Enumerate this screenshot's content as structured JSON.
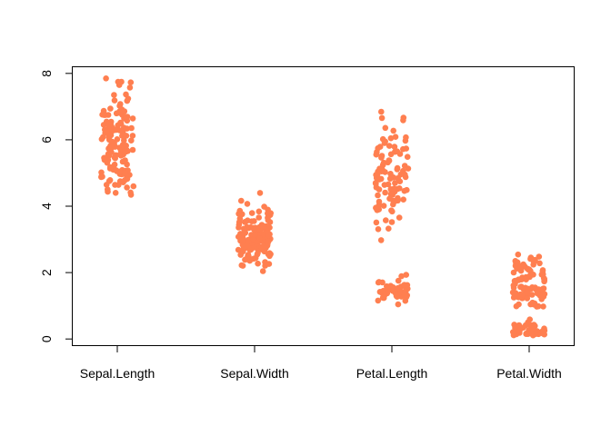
{
  "chart_data": {
    "type": "scatter",
    "subtype": "strip-chart-jittered",
    "title": "",
    "xlabel": "",
    "ylabel": "",
    "categories": [
      "Sepal.Length",
      "Sepal.Width",
      "Petal.Length",
      "Petal.Width"
    ],
    "ylim": [
      -0.2,
      8.2
    ],
    "yticks": [
      0,
      2,
      4,
      6,
      8
    ],
    "point_color": "#FF7F50",
    "legend": "none",
    "grid": false,
    "series": [
      {
        "category": "Sepal.Length",
        "values": [
          5.1,
          4.9,
          4.7,
          4.6,
          5.0,
          5.4,
          4.6,
          5.0,
          4.4,
          4.9,
          5.4,
          4.8,
          4.8,
          4.3,
          5.8,
          5.7,
          5.4,
          5.1,
          5.7,
          5.1,
          5.4,
          5.1,
          4.6,
          5.1,
          4.8,
          5.0,
          5.0,
          5.2,
          5.2,
          4.7,
          4.8,
          5.4,
          5.2,
          5.5,
          4.9,
          5.0,
          5.5,
          4.9,
          4.4,
          5.1,
          5.0,
          4.5,
          4.4,
          5.0,
          5.1,
          4.8,
          5.1,
          4.6,
          5.3,
          5.0,
          7.0,
          6.4,
          6.9,
          5.5,
          6.5,
          5.7,
          6.3,
          4.9,
          6.6,
          5.2,
          5.0,
          5.9,
          6.0,
          6.1,
          5.6,
          6.7,
          5.6,
          5.8,
          6.2,
          5.6,
          5.9,
          6.1,
          6.3,
          6.1,
          6.4,
          6.6,
          6.8,
          6.7,
          6.0,
          5.7,
          5.5,
          5.5,
          5.8,
          6.0,
          5.4,
          6.0,
          6.7,
          6.3,
          5.6,
          5.5,
          5.5,
          6.1,
          5.8,
          5.0,
          5.6,
          5.7,
          5.7,
          6.2,
          5.1,
          5.7,
          6.3,
          5.8,
          7.1,
          6.3,
          6.5,
          7.6,
          4.9,
          7.3,
          6.7,
          7.2,
          6.5,
          6.4,
          6.8,
          5.7,
          5.8,
          6.4,
          6.5,
          7.7,
          7.7,
          6.0,
          6.9,
          5.6,
          7.7,
          6.3,
          6.7,
          7.2,
          6.2,
          6.1,
          6.4,
          7.2,
          7.4,
          7.9,
          6.4,
          6.3,
          6.1,
          7.7,
          6.3,
          6.4,
          6.0,
          6.9,
          6.7,
          6.9,
          5.8,
          6.8,
          6.7,
          6.7,
          6.3,
          6.5,
          6.2,
          5.9
        ]
      },
      {
        "category": "Sepal.Width",
        "values": [
          3.5,
          3.0,
          3.2,
          3.1,
          3.6,
          3.9,
          3.4,
          3.4,
          2.9,
          3.1,
          3.7,
          3.4,
          3.0,
          3.0,
          4.0,
          4.4,
          3.9,
          3.5,
          3.8,
          3.8,
          3.4,
          3.7,
          3.6,
          3.3,
          3.4,
          3.0,
          3.4,
          3.5,
          3.4,
          3.2,
          3.1,
          3.4,
          4.1,
          4.2,
          3.1,
          3.2,
          3.5,
          3.6,
          3.0,
          3.4,
          3.5,
          2.3,
          3.2,
          3.5,
          3.8,
          3.0,
          3.8,
          3.2,
          3.7,
          3.3,
          3.2,
          3.2,
          3.1,
          2.3,
          2.8,
          2.8,
          3.3,
          2.4,
          2.9,
          2.7,
          2.0,
          3.0,
          2.2,
          2.9,
          2.9,
          3.1,
          3.0,
          2.7,
          2.2,
          2.5,
          3.2,
          2.8,
          2.5,
          2.8,
          2.9,
          3.0,
          2.8,
          3.0,
          2.9,
          2.6,
          2.4,
          2.4,
          2.7,
          2.7,
          3.0,
          3.4,
          3.1,
          2.3,
          3.0,
          2.5,
          2.6,
          3.0,
          2.6,
          2.3,
          2.7,
          3.0,
          2.9,
          2.9,
          2.5,
          2.8,
          3.3,
          2.7,
          3.0,
          2.9,
          3.0,
          3.0,
          2.5,
          2.9,
          2.5,
          3.6,
          3.2,
          2.7,
          3.0,
          2.5,
          2.8,
          3.2,
          3.0,
          3.8,
          2.6,
          2.2,
          3.2,
          2.8,
          2.8,
          2.7,
          3.3,
          3.2,
          2.8,
          3.0,
          2.8,
          3.0,
          2.8,
          3.8,
          2.8,
          2.8,
          2.6,
          3.0,
          3.4,
          3.1,
          3.0,
          3.1,
          3.1,
          3.1,
          2.7,
          3.2,
          3.3,
          3.0,
          2.5,
          3.0,
          3.4,
          3.0
        ]
      },
      {
        "category": "Petal.Length",
        "values": [
          1.4,
          1.4,
          1.3,
          1.5,
          1.4,
          1.7,
          1.4,
          1.5,
          1.4,
          1.5,
          1.5,
          1.6,
          1.4,
          1.1,
          1.2,
          1.5,
          1.3,
          1.4,
          1.7,
          1.5,
          1.7,
          1.5,
          1.0,
          1.7,
          1.9,
          1.6,
          1.6,
          1.5,
          1.4,
          1.6,
          1.6,
          1.5,
          1.5,
          1.4,
          1.5,
          1.2,
          1.3,
          1.4,
          1.3,
          1.5,
          1.3,
          1.3,
          1.3,
          1.6,
          1.9,
          1.4,
          1.6,
          1.4,
          1.5,
          1.4,
          4.7,
          4.5,
          4.9,
          4.0,
          4.6,
          4.5,
          4.7,
          3.3,
          4.6,
          3.9,
          3.5,
          4.2,
          4.0,
          4.7,
          3.6,
          4.4,
          4.5,
          4.1,
          4.5,
          3.9,
          4.8,
          4.0,
          4.9,
          4.7,
          4.3,
          4.4,
          4.8,
          5.0,
          4.5,
          3.5,
          3.8,
          3.7,
          3.9,
          5.1,
          4.5,
          4.5,
          4.7,
          4.4,
          4.1,
          4.0,
          4.4,
          4.6,
          4.0,
          3.3,
          4.2,
          4.2,
          4.2,
          4.3,
          3.0,
          4.1,
          6.0,
          5.1,
          5.9,
          5.6,
          5.8,
          6.6,
          4.5,
          6.3,
          5.8,
          6.1,
          5.1,
          5.3,
          5.5,
          5.0,
          5.1,
          5.3,
          5.5,
          6.7,
          6.9,
          5.0,
          5.7,
          4.9,
          6.7,
          4.9,
          5.7,
          6.0,
          4.8,
          4.9,
          5.6,
          5.8,
          6.1,
          6.4,
          5.6,
          5.1,
          5.6,
          6.1,
          5.6,
          5.5,
          4.8,
          5.4,
          5.6,
          5.1,
          5.1,
          5.9,
          5.7,
          5.2,
          5.0,
          5.2,
          5.4,
          5.1
        ]
      },
      {
        "category": "Petal.Width",
        "values": [
          0.2,
          0.2,
          0.2,
          0.2,
          0.2,
          0.4,
          0.3,
          0.2,
          0.2,
          0.1,
          0.2,
          0.2,
          0.1,
          0.1,
          0.2,
          0.4,
          0.4,
          0.3,
          0.3,
          0.3,
          0.2,
          0.4,
          0.2,
          0.5,
          0.2,
          0.2,
          0.4,
          0.2,
          0.2,
          0.2,
          0.2,
          0.4,
          0.1,
          0.2,
          0.2,
          0.2,
          0.2,
          0.1,
          0.2,
          0.2,
          0.3,
          0.3,
          0.2,
          0.6,
          0.4,
          0.3,
          0.2,
          0.2,
          0.2,
          0.2,
          1.4,
          1.5,
          1.5,
          1.3,
          1.5,
          1.3,
          1.6,
          1.0,
          1.3,
          1.4,
          1.0,
          1.5,
          1.0,
          1.4,
          1.3,
          1.4,
          1.5,
          1.0,
          1.5,
          1.1,
          1.8,
          1.3,
          1.5,
          1.2,
          1.3,
          1.4,
          1.4,
          1.7,
          1.5,
          1.0,
          1.1,
          1.0,
          1.2,
          1.6,
          1.5,
          1.6,
          1.5,
          1.3,
          1.3,
          1.3,
          1.2,
          1.4,
          1.2,
          1.0,
          1.3,
          1.2,
          1.3,
          1.3,
          1.1,
          1.3,
          2.5,
          1.9,
          2.1,
          1.8,
          2.2,
          2.1,
          1.7,
          1.8,
          1.8,
          2.5,
          2.0,
          1.9,
          2.1,
          2.0,
          2.4,
          2.3,
          1.8,
          2.2,
          2.3,
          1.5,
          2.3,
          2.0,
          2.0,
          1.8,
          2.1,
          1.8,
          1.8,
          1.8,
          2.1,
          1.6,
          1.9,
          2.0,
          2.2,
          1.5,
          1.4,
          2.3,
          2.4,
          1.8,
          1.8,
          2.1,
          2.4,
          2.3,
          1.9,
          2.3,
          2.5,
          2.3,
          1.9,
          2.0,
          2.3,
          1.8
        ]
      }
    ]
  }
}
